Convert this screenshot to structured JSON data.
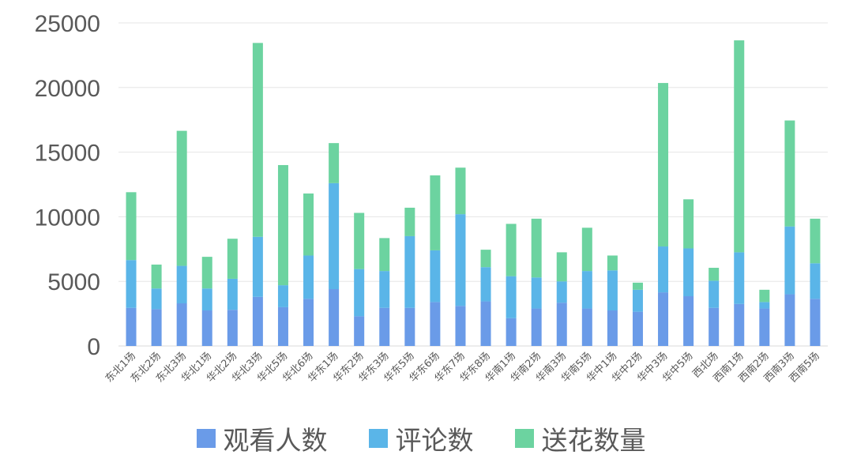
{
  "chart_data": {
    "type": "bar",
    "stacked": true,
    "categories": [
      "东北1场",
      "东北2场",
      "东北3场",
      "华北1场",
      "华北2场",
      "华北3场",
      "华北5场",
      "华北6场",
      "华东1场",
      "华东2场",
      "华东3场",
      "华东5场",
      "华东6场",
      "华东7场",
      "华东8场",
      "华南1场",
      "华南2场",
      "华南3场",
      "华南5场",
      "华中1场",
      "华中2场",
      "华中3场",
      "华中5场",
      "西北场",
      "西南1场",
      "西南2场",
      "西南3场",
      "西南5场"
    ],
    "series": [
      {
        "name": "观看人数",
        "color": "#6A9BE8",
        "values": [
          2950,
          2850,
          3300,
          2750,
          2800,
          3800,
          3000,
          3650,
          4400,
          2300,
          2950,
          2950,
          3400,
          3100,
          3450,
          2150,
          2900,
          3350,
          2900,
          2750,
          2650,
          4150,
          3850,
          2950,
          3250,
          2900,
          4000,
          3650
        ]
      },
      {
        "name": "评论数",
        "color": "#5AB5E8",
        "values": [
          3700,
          1600,
          2900,
          1700,
          2400,
          4650,
          1700,
          3350,
          8200,
          3650,
          2850,
          5550,
          4000,
          7100,
          2650,
          3250,
          2400,
          1650,
          2900,
          3100,
          1700,
          3550,
          3700,
          2100,
          4000,
          500,
          5250,
          2750
        ]
      },
      {
        "name": "送花数量",
        "color": "#6CD3A0",
        "values": [
          5250,
          1850,
          10450,
          2450,
          3100,
          15000,
          9300,
          4800,
          3100,
          4350,
          2550,
          2200,
          5800,
          3600,
          1350,
          4050,
          4550,
          2250,
          3350,
          1150,
          550,
          12650,
          3800,
          1000,
          16400,
          950,
          8200,
          3450
        ]
      }
    ],
    "y_ticks": [
      "0",
      "5000",
      "10000",
      "15000",
      "20000",
      "25000"
    ],
    "ylim": [
      0,
      25000
    ],
    "grid": true,
    "legend_position": "bottom"
  }
}
